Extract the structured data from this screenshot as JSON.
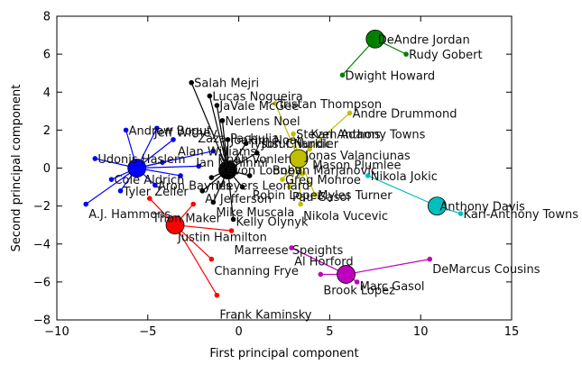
{
  "chart_data": {
    "type": "scatter",
    "xlabel": "First principal component",
    "ylabel": "Second principal component",
    "xlim": [
      -10,
      15
    ],
    "ylim": [
      -8,
      8
    ],
    "xticks": [
      "−10",
      "−5",
      "0",
      "5",
      "10",
      "15"
    ],
    "yticks": [
      "−8",
      "−6",
      "−4",
      "−2",
      "0",
      "2",
      "4",
      "6",
      "8"
    ],
    "grid": false,
    "legend": "none",
    "clusters": [
      {
        "color": "#0000ff",
        "center": [
          -5.6,
          0.0
        ],
        "points": [
          {
            "x": -8.4,
            "y": -1.9,
            "label": "A.J. Hammons"
          },
          {
            "x": -7.9,
            "y": 0.5,
            "label": "Udonis Haslem"
          },
          {
            "x": -6.2,
            "y": 2.0,
            "label": "Andrew Bogut"
          },
          {
            "x": -4.5,
            "y": 2.1,
            "label": "Jeff Withey"
          },
          {
            "x": -3.6,
            "y": 1.5,
            "label": "Alan Williams"
          },
          {
            "x": -7.0,
            "y": -0.6,
            "label": "Cole Aldrich"
          },
          {
            "x": -6.5,
            "y": -1.2,
            "label": "Tyler Zeller"
          },
          {
            "x": -4.6,
            "y": -0.9,
            "label": "Aron Baynes"
          },
          {
            "x": -4.2,
            "y": 0.3,
            "label": "Kevon Looney"
          },
          {
            "x": -3.2,
            "y": -0.4,
            "label": "Zaza Pachulia"
          },
          {
            "x": -2.2,
            "y": 0.1,
            "label": "Ian Mahinmi"
          },
          {
            "x": -1.4,
            "y": 0.9,
            "label": "Noah Vonleh"
          }
        ]
      },
      {
        "color": "#000000",
        "center": [
          -0.6,
          -0.1
        ],
        "points": [
          {
            "x": -2.6,
            "y": 4.5,
            "label": "Salah Mejri"
          },
          {
            "x": -1.6,
            "y": 3.8,
            "label": "Lucas Nogueira"
          },
          {
            "x": -1.2,
            "y": 3.3,
            "label": "JaVale McGee"
          },
          {
            "x": -0.9,
            "y": 2.5,
            "label": "Nerlens Noel"
          },
          {
            "x": -0.6,
            "y": 1.5,
            "label": "Joakim Noah"
          },
          {
            "x": 0.4,
            "y": 1.3,
            "label": "Tyson Chandler"
          },
          {
            "x": 1.0,
            "y": 0.8,
            "label": "Jusuf Nurkic"
          },
          {
            "x": -1.5,
            "y": -0.5,
            "label": "Meyers Leonard"
          },
          {
            "x": -2.0,
            "y": -1.2,
            "label": "Al Jefferson"
          },
          {
            "x": -1.4,
            "y": -1.8,
            "label": "Mike Muscala"
          },
          {
            "x": 0.2,
            "y": -1.0,
            "label": "Mason Plumlee"
          },
          {
            "x": -0.3,
            "y": -2.7,
            "label": "Kelly Olynyk"
          },
          {
            "x": 0.6,
            "y": -0.4,
            "label": "Robin Lopez"
          }
        ]
      },
      {
        "color": "#bfbf00",
        "center": [
          3.3,
          0.5
        ],
        "points": [
          {
            "x": 2.0,
            "y": 3.4,
            "label": "Tristan Thompson"
          },
          {
            "x": 6.1,
            "y": 2.9,
            "label": "Andre Drummond"
          },
          {
            "x": 3.0,
            "y": 1.8,
            "label": "Steven Adams"
          },
          {
            "x": 3.9,
            "y": 1.0,
            "label": "Karl Anthony Towns"
          },
          {
            "x": 3.5,
            "y": -0.3,
            "label": "Jonas Valanciunas"
          },
          {
            "x": 2.4,
            "y": -0.6,
            "label": "Greg Monroe"
          },
          {
            "x": 3.4,
            "y": -1.9,
            "label": "Nikola Vucevic"
          },
          {
            "x": 2.8,
            "y": -1.0,
            "label": "Pau Gasol"
          },
          {
            "x": 4.2,
            "y": -1.4,
            "label": "Myles Turner"
          }
        ]
      },
      {
        "color": "#008000",
        "center": [
          7.5,
          6.8
        ],
        "points": [
          {
            "x": 9.2,
            "y": 6.0,
            "label": "Rudy Gobert"
          },
          {
            "x": 5.7,
            "y": 4.9,
            "label": "Dwight Howard"
          }
        ],
        "center_label": "DeAndre Jordan"
      },
      {
        "color": "#00bfbf",
        "center": [
          10.9,
          -2.0
        ],
        "points": [
          {
            "x": 7.1,
            "y": -0.4,
            "label": "Nikola Jokic"
          },
          {
            "x": 12.2,
            "y": -2.4,
            "label": "Karl-Anthony Towns"
          }
        ],
        "center_label": "Anthony Davis"
      },
      {
        "color": "#bf00bf",
        "center": [
          5.9,
          -5.6
        ],
        "points": [
          {
            "x": 2.9,
            "y": -4.2,
            "label": "Al Horford"
          },
          {
            "x": 10.5,
            "y": -4.8,
            "label": "DeMarcus Cousins"
          },
          {
            "x": 4.5,
            "y": -5.6,
            "label": "Brook Lopez"
          },
          {
            "x": 6.5,
            "y": -6.0,
            "label": "Marc Gasol"
          }
        ]
      },
      {
        "color": "#ff0000",
        "center": [
          -3.5,
          -3.0
        ],
        "points": [
          {
            "x": -4.9,
            "y": -1.6,
            "label": "Thon Maker"
          },
          {
            "x": -2.5,
            "y": -1.9,
            "label": "Justin Hamilton"
          },
          {
            "x": -1.5,
            "y": -4.8,
            "label": "Channing Frye"
          },
          {
            "x": -1.2,
            "y": -6.7,
            "label": "Frank Kaminsky"
          },
          {
            "x": -0.4,
            "y": -3.3,
            "label": "Marreese Speights"
          }
        ]
      }
    ],
    "labels": [
      {
        "text": "DeAndre Jordan",
        "x": 7.5,
        "y": 6.8
      },
      {
        "text": "Rudy Gobert",
        "x": 9.2,
        "y": 6.0
      },
      {
        "text": "Dwight Howard",
        "x": 5.7,
        "y": 4.9
      },
      {
        "text": "Salah Mejri",
        "x": -2.6,
        "y": 4.5
      },
      {
        "text": "Lucas Nogueira",
        "x": -1.6,
        "y": 3.8
      },
      {
        "text": "JaVale McGee",
        "x": -1.2,
        "y": 3.3
      },
      {
        "text": "Tristan Thompson",
        "x": 2.0,
        "y": 3.4
      },
      {
        "text": "Andre Drummond",
        "x": 6.1,
        "y": 2.9
      },
      {
        "text": "Nerlens Noel",
        "x": -0.9,
        "y": 2.5
      },
      {
        "text": "Andrew Bogut",
        "x": -6.2,
        "y": 2.0
      },
      {
        "text": "Steven Adams",
        "x": 3.0,
        "y": 1.8
      },
      {
        "text": "Joakim Noah",
        "x": -0.6,
        "y": 1.5
      },
      {
        "text": "Tyson Chandler",
        "x": 0.4,
        "y": 1.3
      },
      {
        "text": "Jonas Valanciunas",
        "x": 3.5,
        "y": 0.7
      },
      {
        "text": "Udonis Haslem",
        "x": -7.9,
        "y": 0.5
      },
      {
        "text": "Mason Plumlee",
        "x": 3.9,
        "y": 0.2
      },
      {
        "text": "Greg Monroe",
        "x": 2.4,
        "y": -0.6
      },
      {
        "text": "Nikola Jokic",
        "x": 7.1,
        "y": -0.4
      },
      {
        "text": "Cole Aldrich",
        "x": -7.0,
        "y": -0.6
      },
      {
        "text": "Tyler Zeller",
        "x": -6.5,
        "y": -1.2
      },
      {
        "text": "Aron Baynes",
        "x": -4.6,
        "y": -0.9
      },
      {
        "text": "Robin Lopez",
        "x": 0.6,
        "y": -1.4
      },
      {
        "text": "Myles Turner",
        "x": 4.2,
        "y": -1.4
      },
      {
        "text": "Pau Gasol",
        "x": 2.8,
        "y": -1.5
      },
      {
        "text": "Al Jefferson",
        "x": -2.0,
        "y": -1.6
      },
      {
        "text": "Nikola Vucevic",
        "x": 3.4,
        "y": -2.5
      },
      {
        "text": "Anthony Davis",
        "x": 10.9,
        "y": -2.0
      },
      {
        "text": "Karl-Anthony Towns",
        "x": 12.2,
        "y": -2.4
      },
      {
        "text": "A.J. Hammons",
        "x": -8.4,
        "y": -2.4
      },
      {
        "text": "Thon Maker",
        "x": -4.9,
        "y": -2.6
      },
      {
        "text": "Mike Muscala",
        "x": -1.4,
        "y": -2.3
      },
      {
        "text": "Kelly Olynyk",
        "x": -0.3,
        "y": -2.8
      },
      {
        "text": "Justin Hamilton",
        "x": -3.5,
        "y": -3.6
      },
      {
        "text": "Marreese Speights",
        "x": -0.4,
        "y": -4.3
      },
      {
        "text": "Al Horford",
        "x": 2.9,
        "y": -4.9
      },
      {
        "text": "Channing Frye",
        "x": -1.5,
        "y": -5.4
      },
      {
        "text": "DeMarcus Cousins",
        "x": 10.5,
        "y": -5.3
      },
      {
        "text": "Marc Gasol",
        "x": 6.5,
        "y": -6.2
      },
      {
        "text": "Brook Lopez",
        "x": 4.5,
        "y": -6.4
      },
      {
        "text": "Frank Kaminsky",
        "x": -1.2,
        "y": -7.7
      },
      {
        "text": "Zaza Pachulia",
        "x": -2.4,
        "y": 1.6
      },
      {
        "text": "Ian Mahinmi",
        "x": -2.5,
        "y": 0.3
      },
      {
        "text": "Kevon Looney",
        "x": -1.2,
        "y": -0.1
      },
      {
        "text": "Alan Williams",
        "x": -3.5,
        "y": 0.9
      },
      {
        "text": "Jeff Withey",
        "x": -4.8,
        "y": 1.9
      },
      {
        "text": "Meyers Leonard",
        "x": -1.4,
        "y": -0.9
      },
      {
        "text": "Jusuf Nurkic",
        "x": 1.1,
        "y": 1.3
      },
      {
        "text": "Karl Anthony Towns",
        "x": 3.8,
        "y": 1.8
      },
      {
        "text": "Noah Vonleh",
        "x": -1.3,
        "y": 0.5
      },
      {
        "text": "Boban Marjanovic",
        "x": 1.7,
        "y": -0.1
      }
    ]
  }
}
